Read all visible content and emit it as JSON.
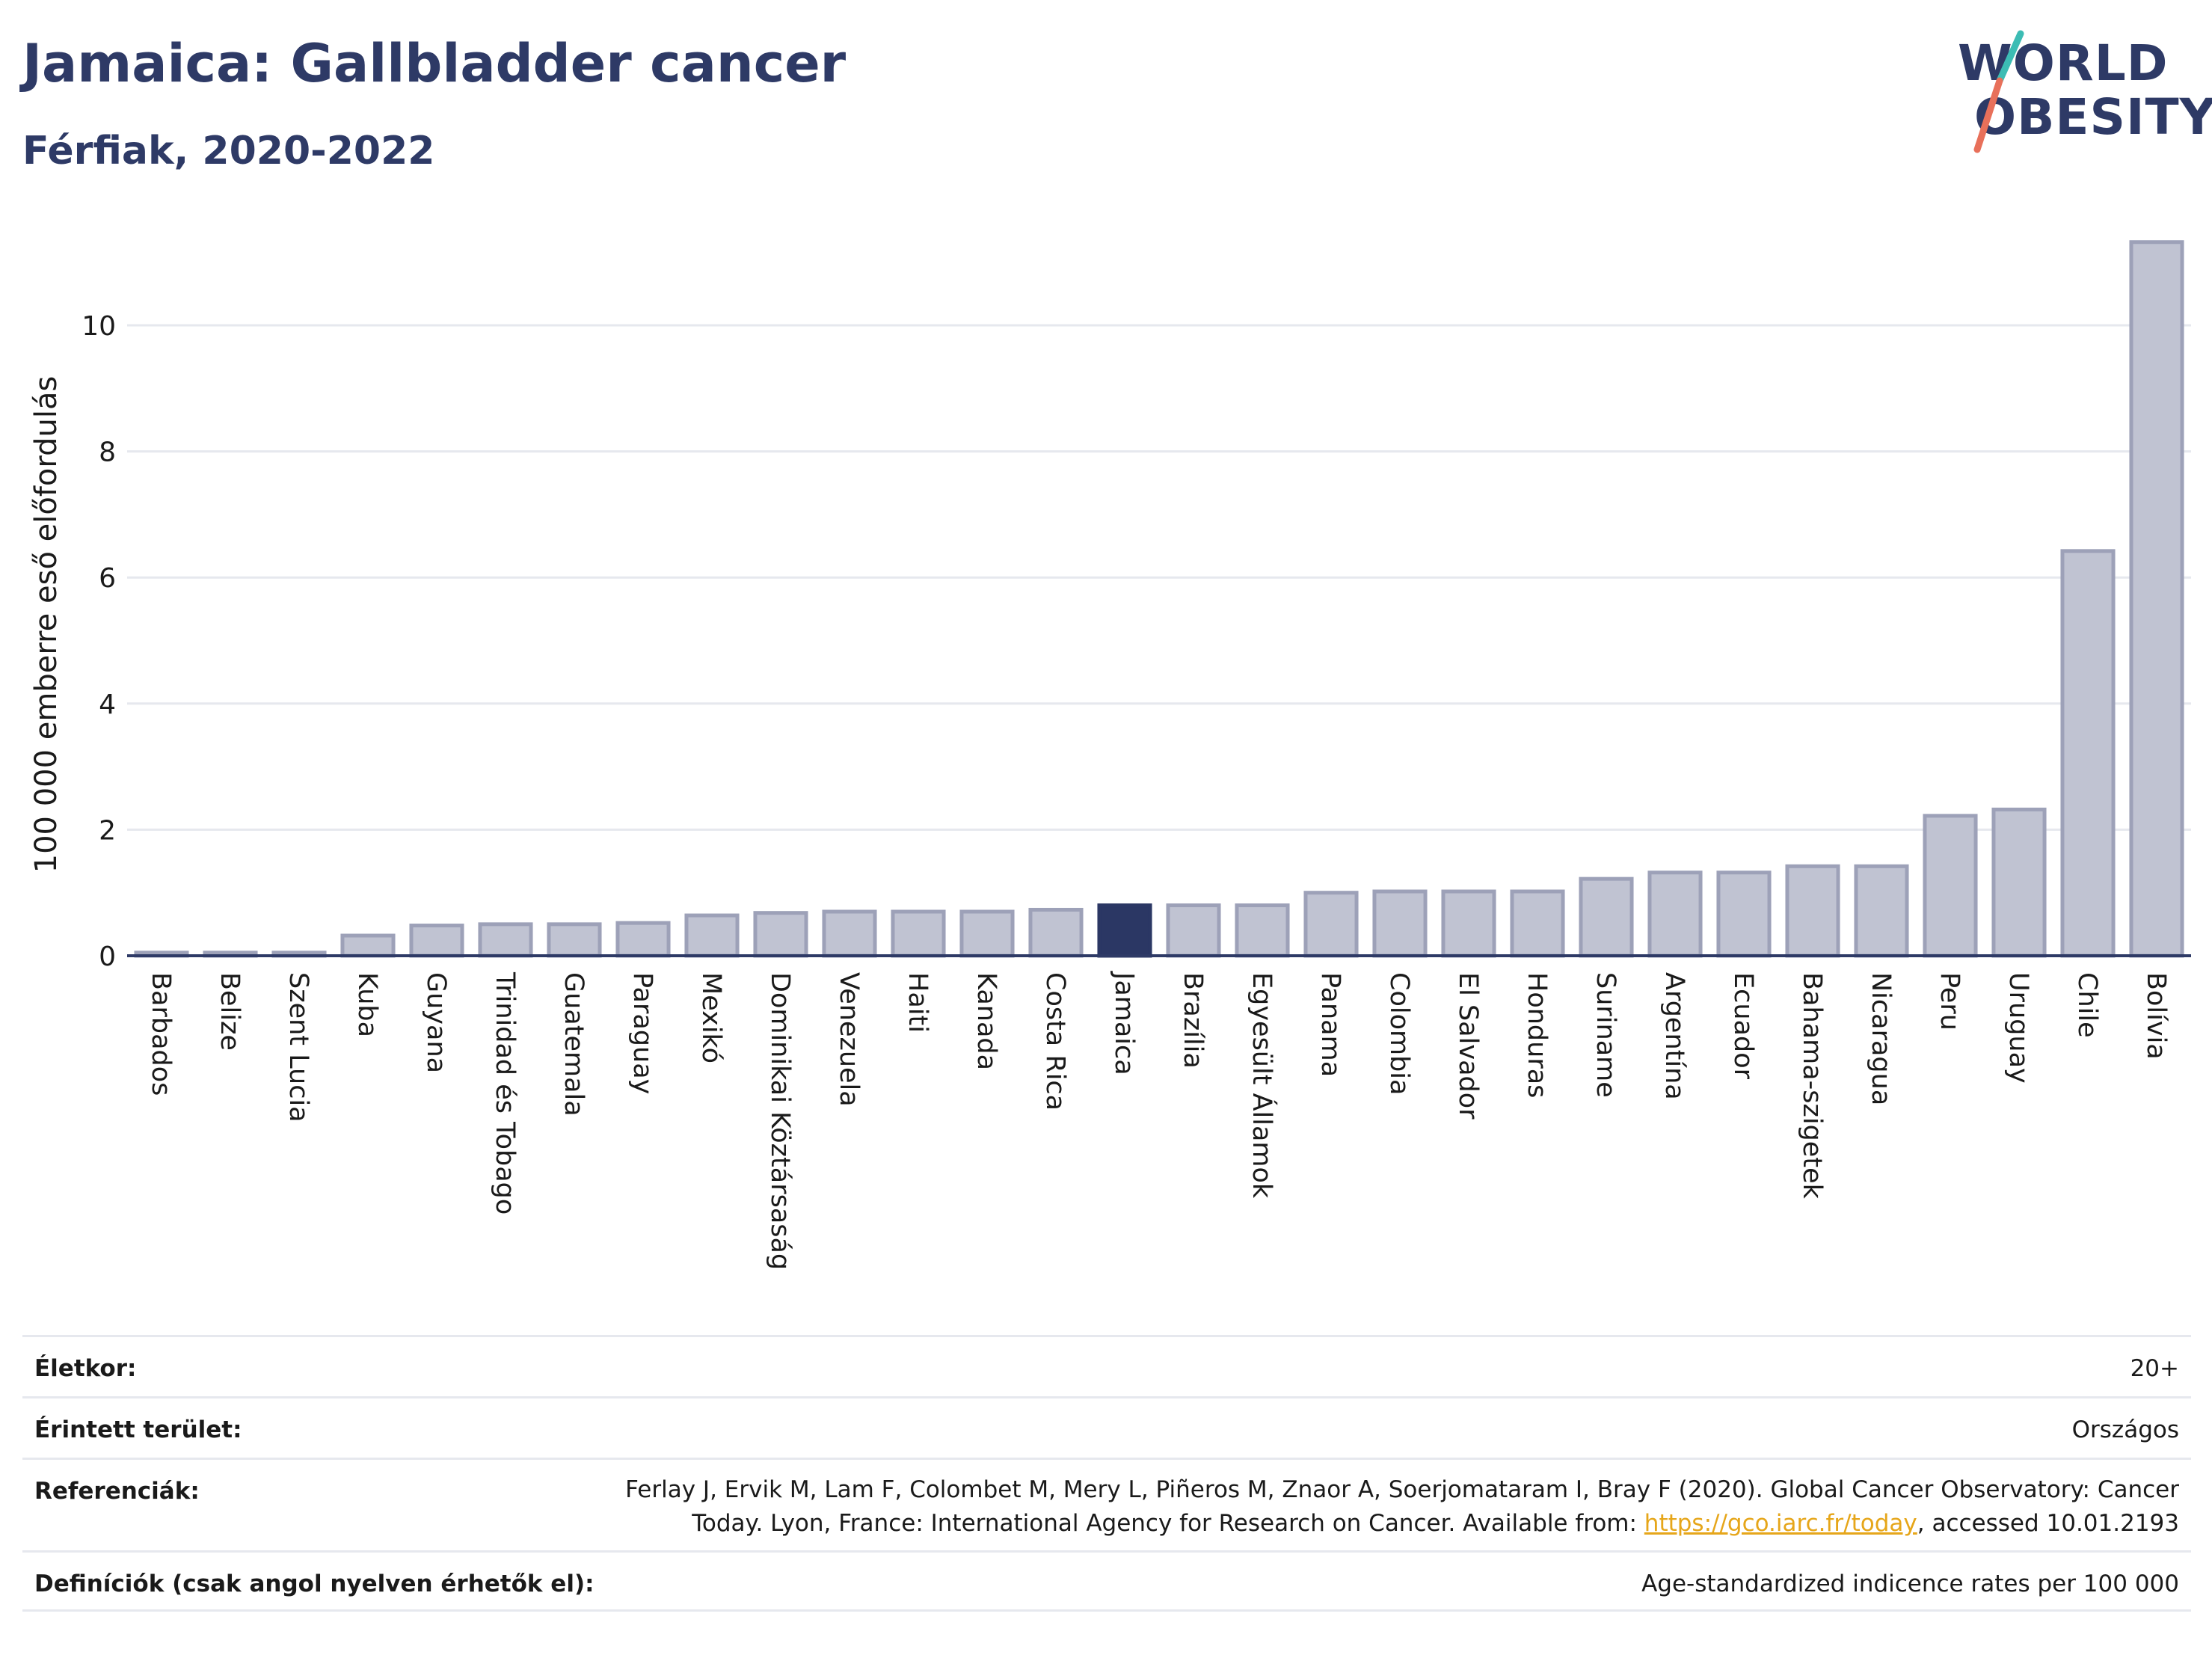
{
  "header": {
    "title": "Jamaica: Gallbladder cancer",
    "subtitle": "Férfiak, 2020-2022"
  },
  "logo": {
    "line1": "WORLD",
    "line2": "OBESITY",
    "colors": {
      "text": "#2e3a66",
      "slash_top": "#3cbcb4",
      "slash_bottom": "#e8705a"
    }
  },
  "colors": {
    "bar": "#c0c3d2",
    "bar_stroke": "#9da1b8",
    "highlight": "#2b3764",
    "grid": "#e6e8ee",
    "axis": "#2e3a66"
  },
  "chart_data": {
    "type": "bar",
    "ylabel": "100 000 emberre eső előfordulás",
    "xlabel": "",
    "ylim": [
      0,
      11.8
    ],
    "yticks": [
      0,
      2,
      4,
      6,
      8,
      10
    ],
    "grid": true,
    "highlight": "Jamaica",
    "categories": [
      "Barbados",
      "Belize",
      "Szent Lucia",
      "Kuba",
      "Guyana",
      "Trinidad és Tobago",
      "Guatemala",
      "Paraguay",
      "Mexikó",
      "Dominikai Köztársaság",
      "Venezuela",
      "Haiti",
      "Kanada",
      "Costa Rica",
      "Jamaica",
      "Brazília",
      "Egyesült Államok",
      "Panama",
      "Colombia",
      "El Salvador",
      "Honduras",
      "Suriname",
      "Argentína",
      "Ecuador",
      "Bahama-szigetek",
      "Nicaragua",
      "Peru",
      "Uruguay",
      "Chile",
      "Bolívia"
    ],
    "values": [
      0.05,
      0.05,
      0.05,
      0.32,
      0.48,
      0.5,
      0.5,
      0.52,
      0.64,
      0.68,
      0.7,
      0.7,
      0.7,
      0.73,
      0.8,
      0.8,
      0.8,
      1.0,
      1.02,
      1.02,
      1.02,
      1.22,
      1.32,
      1.32,
      1.42,
      1.42,
      2.22,
      2.32,
      6.42,
      11.32
    ]
  },
  "info": {
    "age_label": "Életkor:",
    "age_value": "20+",
    "area_label": "Érintett terület:",
    "area_value": "Országos",
    "ref_label": "Referenciák:",
    "ref_text_1": "Ferlay J, Ervik M, Lam F, Colombet M, Mery L, Piñeros M, Znaor A, Soerjomataram I, Bray F (2020). Global Cancer Observatory: Cancer Today. Lyon, France: International Agency for Research on Cancer. Available from: ",
    "ref_link": "https://gco.iarc.fr/today",
    "ref_text_2": ", accessed 10.01.2193",
    "def_label": "Definíciók (csak angol nyelven érhetők el):",
    "def_value": "Age-standardized indicence rates per 100 000"
  }
}
